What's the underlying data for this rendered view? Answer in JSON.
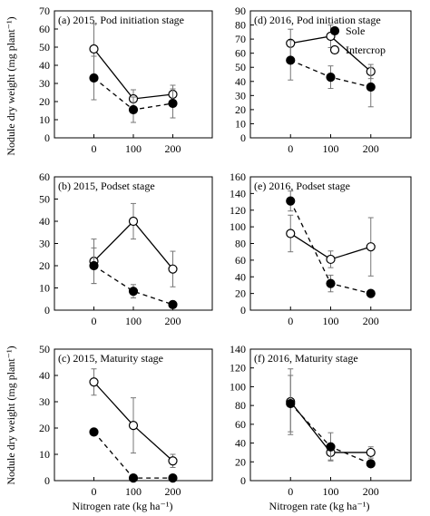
{
  "figure": {
    "y_axis_label": "Nodule dry weight  (mg plant⁻¹)",
    "x_axis_label": "Nitrogen rate (kg ha⁻¹)"
  },
  "legend": {
    "entries": [
      {
        "label": "Sole",
        "marker": "filled-circle",
        "line": "dashed"
      },
      {
        "label": "Intercrop",
        "marker": "open-circle",
        "line": "solid"
      }
    ]
  },
  "chart_data": [
    {
      "type": "line",
      "panel": "a",
      "title": "(a) 2015, Pod initiation stage",
      "categories": [
        "0",
        "100",
        "200"
      ],
      "ylim": [
        0,
        70
      ],
      "yticks": [
        0,
        10,
        20,
        30,
        40,
        50,
        60,
        70
      ],
      "grid": false,
      "series": [
        {
          "name": "Sole",
          "values": [
            33,
            15.5,
            19
          ],
          "err": [
            12,
            7,
            8
          ]
        },
        {
          "name": "Intercrop",
          "values": [
            49,
            21.5,
            24
          ],
          "err": [
            14,
            5,
            5
          ]
        }
      ]
    },
    {
      "type": "line",
      "panel": "d",
      "title": "(d) 2016, Pod initiation stage",
      "categories": [
        "0",
        "100",
        "200"
      ],
      "ylim": [
        0,
        90
      ],
      "yticks": [
        0,
        10,
        20,
        30,
        40,
        50,
        60,
        70,
        80,
        90
      ],
      "grid": false,
      "legend_position": "top-right",
      "series": [
        {
          "name": "Sole",
          "values": [
            55,
            43,
            36
          ],
          "err": [
            14,
            8,
            14
          ]
        },
        {
          "name": "Intercrop",
          "values": [
            67,
            72,
            47
          ],
          "err": [
            10,
            8,
            5
          ]
        }
      ]
    },
    {
      "type": "line",
      "panel": "b",
      "title": "(b) 2015, Podset stage",
      "categories": [
        "0",
        "100",
        "200"
      ],
      "ylim": [
        0,
        60
      ],
      "yticks": [
        0,
        10,
        20,
        30,
        40,
        50,
        60
      ],
      "grid": false,
      "series": [
        {
          "name": "Sole",
          "values": [
            20,
            8.5,
            2.5
          ],
          "err": [
            8,
            3,
            1
          ]
        },
        {
          "name": "Intercrop",
          "values": [
            22,
            40,
            18.5
          ],
          "err": [
            10,
            8,
            8
          ]
        }
      ]
    },
    {
      "type": "line",
      "panel": "e",
      "title": "(e) 2016, Podset stage",
      "categories": [
        "0",
        "100",
        "200"
      ],
      "ylim": [
        0,
        160
      ],
      "yticks": [
        0,
        20,
        40,
        60,
        80,
        100,
        120,
        140,
        160
      ],
      "grid": false,
      "series": [
        {
          "name": "Sole",
          "values": [
            131,
            32,
            20
          ],
          "err": [
            12,
            10,
            2
          ]
        },
        {
          "name": "Intercrop",
          "values": [
            92,
            61,
            76
          ],
          "err": [
            22,
            10,
            35
          ]
        }
      ]
    },
    {
      "type": "line",
      "panel": "c",
      "title": "(c) 2015, Maturity stage",
      "categories": [
        "0",
        "100",
        "200"
      ],
      "ylim": [
        0,
        50
      ],
      "yticks": [
        0,
        10,
        20,
        30,
        40,
        50
      ],
      "grid": false,
      "series": [
        {
          "name": "Sole",
          "values": [
            18.5,
            1,
            1
          ],
          "err": [
            0,
            0,
            0
          ]
        },
        {
          "name": "Intercrop",
          "values": [
            37.5,
            21,
            7.5
          ],
          "err": [
            5,
            10.5,
            2.5
          ]
        }
      ]
    },
    {
      "type": "line",
      "panel": "f",
      "title": "(f) 2016, Maturity stage",
      "categories": [
        "0",
        "100",
        "200"
      ],
      "ylim": [
        0,
        140
      ],
      "yticks": [
        0,
        20,
        40,
        60,
        80,
        100,
        120,
        140
      ],
      "grid": false,
      "series": [
        {
          "name": "Sole",
          "values": [
            82,
            36,
            18
          ],
          "err": [
            30,
            15,
            3
          ]
        },
        {
          "name": "Intercrop",
          "values": [
            84,
            30,
            30
          ],
          "err": [
            35,
            8,
            6
          ]
        }
      ]
    }
  ]
}
